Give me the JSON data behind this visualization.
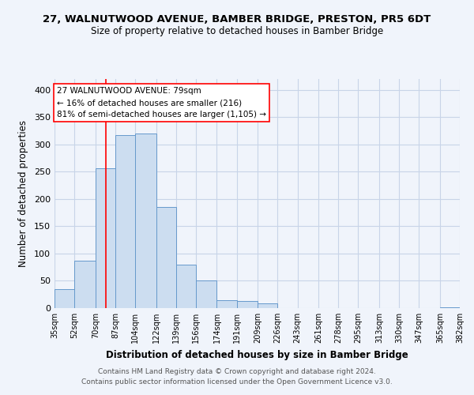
{
  "title_line1": "27, WALNUTWOOD AVENUE, BAMBER BRIDGE, PRESTON, PR5 6DT",
  "title_line2": "Size of property relative to detached houses in Bamber Bridge",
  "xlabel": "Distribution of detached houses by size in Bamber Bridge",
  "ylabel": "Number of detached properties",
  "bin_edges": [
    35,
    52,
    70,
    87,
    104,
    122,
    139,
    156,
    174,
    191,
    209,
    226,
    243,
    261,
    278,
    295,
    313,
    330,
    347,
    365,
    382
  ],
  "bin_labels": [
    "35sqm",
    "52sqm",
    "70sqm",
    "87sqm",
    "104sqm",
    "122sqm",
    "139sqm",
    "156sqm",
    "174sqm",
    "191sqm",
    "209sqm",
    "226sqm",
    "243sqm",
    "261sqm",
    "278sqm",
    "295sqm",
    "313sqm",
    "330sqm",
    "347sqm",
    "365sqm",
    "382sqm"
  ],
  "bar_heights": [
    35,
    87,
    257,
    317,
    320,
    185,
    80,
    50,
    15,
    13,
    8,
    0,
    0,
    0,
    0,
    0,
    0,
    0,
    0,
    2
  ],
  "bar_color": "#ccddf0",
  "bar_edge_color": "#6699cc",
  "property_line_x": 79,
  "ylim": [
    0,
    420
  ],
  "yticks": [
    0,
    50,
    100,
    150,
    200,
    250,
    300,
    350,
    400
  ],
  "annotation_line1": "27 WALNUTWOOD AVENUE: 79sqm",
  "annotation_line2": "← 16% of detached houses are smaller (216)",
  "annotation_line3": "81% of semi-detached houses are larger (1,105) →",
  "grid_color": "#c8d4e8",
  "footer_text": "Contains HM Land Registry data © Crown copyright and database right 2024.\nContains public sector information licensed under the Open Government Licence v3.0.",
  "bg_color": "#f0f4fb"
}
